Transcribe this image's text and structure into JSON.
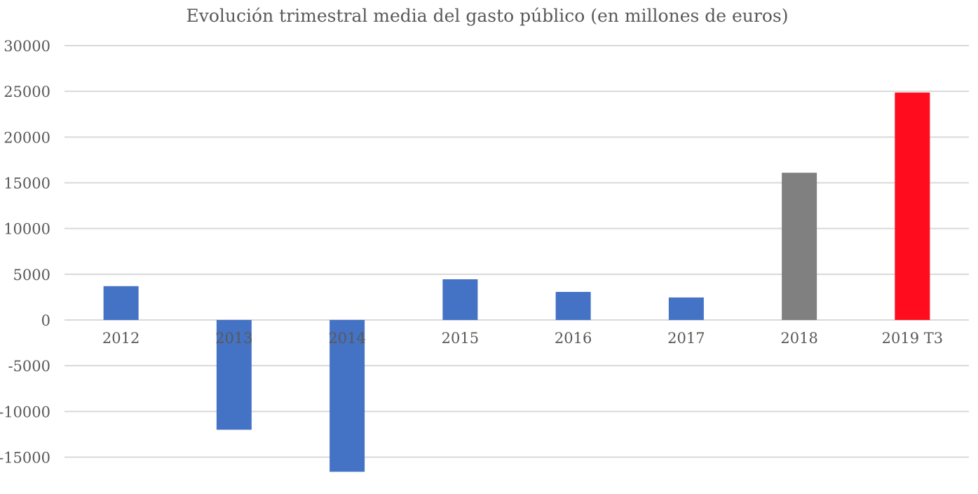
{
  "chart_data": {
    "type": "bar",
    "title": "Evolución trimestral media del gasto público (en millones de euros)",
    "xlabel": "",
    "ylabel": "",
    "categories": [
      "2012",
      "2013",
      "2014",
      "2015",
      "2016",
      "2017",
      "2018",
      "2019 T3"
    ],
    "values": [
      3700,
      -12000,
      -16600,
      4450,
      3070,
      2460,
      16100,
      24870
    ],
    "bar_colors": [
      "#4472C4",
      "#4472C4",
      "#4472C4",
      "#4472C4",
      "#4472C4",
      "#4472C4",
      "#808080",
      "#FF0D1E"
    ],
    "ylim": [
      -17000,
      30000
    ],
    "yticks": [
      30000,
      25000,
      20000,
      15000,
      10000,
      5000,
      0,
      -5000,
      -10000,
      -15000
    ],
    "grid": true,
    "legend": "none"
  }
}
